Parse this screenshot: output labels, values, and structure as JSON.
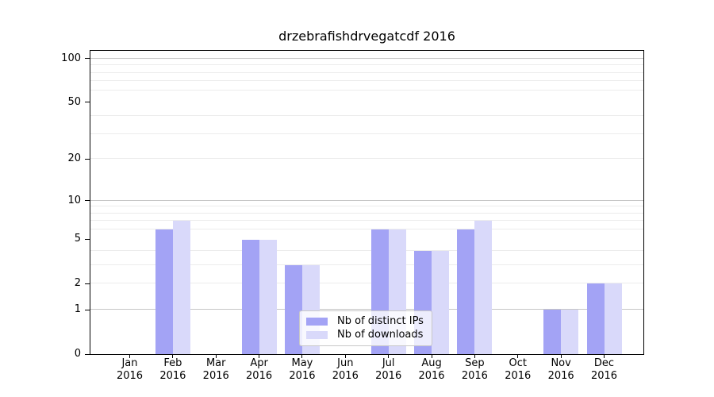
{
  "title": "drzebrafishdrvegatcdf 2016",
  "chart_data": {
    "type": "bar",
    "title": "drzebrafishdrvegatcdf 2016",
    "categories": [
      "Jan 2016",
      "Feb 2016",
      "Mar 2016",
      "Apr 2016",
      "May 2016",
      "Jun 2016",
      "Jul 2016",
      "Aug 2016",
      "Sep 2016",
      "Oct 2016",
      "Nov 2016",
      "Dec 2016"
    ],
    "series": [
      {
        "name": "Nb of distinct IPs",
        "color": "#a3a3f5",
        "values": [
          0,
          6,
          0,
          5,
          3,
          0,
          6,
          4,
          6,
          0,
          1,
          2
        ]
      },
      {
        "name": "Nb of downloads",
        "color": "#d9d9fa",
        "values": [
          0,
          7,
          0,
          5,
          3,
          0,
          6,
          4,
          7,
          0,
          1,
          2
        ]
      }
    ],
    "xlabel": "",
    "ylabel": "",
    "y_scale": "log1p",
    "ylim": [
      0,
      113
    ],
    "y_ticks": [
      0,
      1,
      2,
      5,
      10,
      20,
      50,
      100
    ],
    "gridline_values_minor": [
      2,
      3,
      4,
      6,
      7,
      8,
      9,
      20,
      30,
      40,
      60,
      70,
      80,
      90
    ],
    "gridline_values_major": [
      1,
      10,
      100
    ],
    "grid": true,
    "legend_position": "inside lower center-right",
    "colors": {
      "axis": "#000000",
      "grid_minor": "#ececec",
      "grid_major": "#c6c6c6",
      "legend_border": "#c8c8c8",
      "background": "#ffffff"
    }
  }
}
